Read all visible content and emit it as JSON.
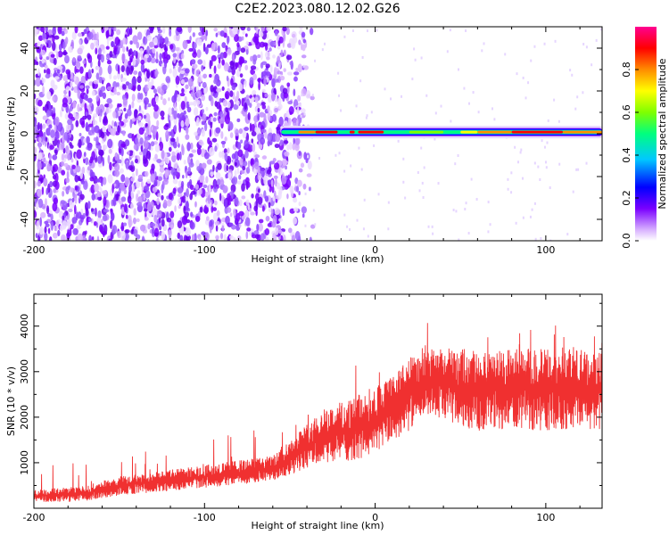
{
  "title": "C2E2.2023.080.12.02.G26",
  "chart_data": [
    {
      "type": "heatmap",
      "xlabel": "Height of straight line (km)",
      "ylabel": "Frequency (Hz)",
      "xlim": [
        -200,
        133
      ],
      "ylim": [
        -50,
        50
      ],
      "x_ticks": [
        -200,
        -100,
        0,
        100
      ],
      "y_ticks": [
        -40,
        -20,
        0,
        20,
        40
      ],
      "colorbar": {
        "label": "Normalized spectral amplitude",
        "range": [
          0,
          1
        ],
        "ticks": [
          "0.0",
          "0.2",
          "0.4",
          "0.6",
          "0.8"
        ],
        "colors": [
          "#ffffff",
          "#d9b3ff",
          "#7a00ff",
          "#0000ff",
          "#00c8ff",
          "#00ff7f",
          "#7fff00",
          "#ffff00",
          "#ff8c00",
          "#ff0000",
          "#ff0090"
        ]
      },
      "noise_region": {
        "x_range": [
          -200,
          -55
        ],
        "f_range": [
          -50,
          50
        ]
      },
      "signal_band": {
        "x_range": [
          -55,
          133
        ],
        "center_freq": 0.8,
        "peak_region_x": [
          80,
          110
        ]
      }
    },
    {
      "type": "line",
      "color": "#f03030",
      "xlabel": "Height of straight line (km)",
      "ylabel": "SNR (10 * v/v)",
      "xlim": [
        -200,
        133
      ],
      "ylim": [
        0,
        4700
      ],
      "x_ticks": [
        -200,
        -100,
        0,
        100
      ],
      "y_ticks": [
        1000,
        2000,
        3000,
        4000
      ],
      "trend": {
        "x": [
          -200,
          -170,
          -150,
          -120,
          -80,
          -60,
          -45,
          -30,
          -10,
          0,
          10,
          20,
          30,
          40,
          60,
          80,
          100,
          120,
          133
        ],
        "y_low": [
          120,
          150,
          280,
          380,
          520,
          600,
          800,
          1000,
          1050,
          1250,
          1450,
          1700,
          2050,
          1900,
          1700,
          1750,
          1700,
          1750,
          1700
        ],
        "y_high": [
          400,
          500,
          700,
          850,
          1050,
          1150,
          1700,
          2200,
          2500,
          2700,
          2900,
          3300,
          3500,
          3500,
          3400,
          3500,
          3500,
          3500,
          3400
        ]
      }
    }
  ]
}
